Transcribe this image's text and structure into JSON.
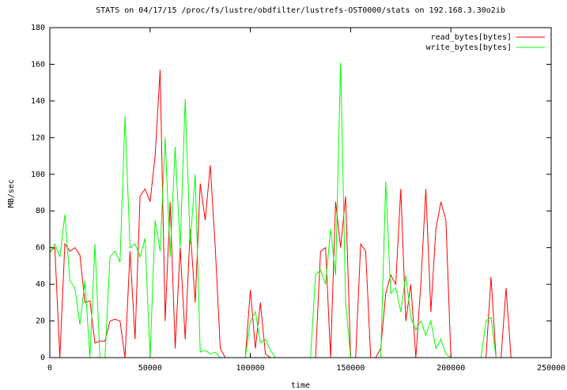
{
  "chart_data": {
    "type": "line",
    "title": "STATS on 04/17/15 /proc/fs/lustre/obdfilter/lustrefs-OST0000/stats on 192.168.3.30o2ib",
    "x_label": "time",
    "y_label": "MB/sec",
    "x": [
      0,
      2500,
      5000,
      7500,
      10000,
      12500,
      15000,
      17500,
      20000,
      22500,
      25000,
      27500,
      30000,
      32500,
      35000,
      37500,
      40000,
      42500,
      45000,
      47500,
      50000,
      52500,
      55000,
      57500,
      60000,
      62500,
      65000,
      67500,
      70000,
      72500,
      75000,
      77500,
      80000,
      82500,
      85000,
      87500,
      90000,
      92500,
      95000,
      97500,
      100000,
      102500,
      105000,
      107500,
      110000,
      112500,
      115000,
      117500,
      120000,
      122500,
      125000,
      127500,
      130000,
      132500,
      135000,
      137500,
      140000,
      142500,
      145000,
      147500,
      150000,
      152500,
      155000,
      157500,
      160000,
      162500,
      165000,
      167500,
      170000,
      172500,
      175000,
      177500,
      180000,
      182500,
      185000,
      187500,
      190000,
      192500,
      195000,
      197500,
      200000,
      202500,
      205000,
      207500,
      210000,
      212500,
      215000,
      217500,
      220000,
      222500,
      225000,
      227500,
      230000
    ],
    "series": [
      {
        "name": "read_bytes[bytes]",
        "color": "#ff0000",
        "values": [
          58,
          60,
          0,
          62,
          58,
          60,
          56,
          30,
          31,
          8,
          9,
          9,
          20,
          21,
          20,
          0,
          58,
          10,
          88,
          92,
          85,
          110,
          157,
          20,
          85,
          5,
          60,
          10,
          70,
          30,
          95,
          75,
          105,
          60,
          5,
          0,
          0,
          0,
          0,
          0,
          37,
          5,
          30,
          2,
          0,
          0,
          0,
          0,
          0,
          0,
          0,
          0,
          0,
          0,
          58,
          60,
          0,
          85,
          60,
          88,
          0,
          0,
          62,
          58,
          0,
          0,
          5,
          35,
          45,
          40,
          92,
          20,
          40,
          0,
          40,
          92,
          25,
          70,
          85,
          75,
          0,
          0,
          0,
          0,
          0,
          0,
          0,
          0,
          44,
          0,
          0,
          38,
          0
        ]
      },
      {
        "name": "write_bytes[bytes]",
        "color": "#00ff00",
        "values": [
          57,
          62,
          55,
          78,
          42,
          38,
          18,
          42,
          0,
          62,
          0,
          0,
          55,
          58,
          52,
          132,
          60,
          62,
          55,
          65,
          0,
          75,
          58,
          120,
          55,
          115,
          60,
          141,
          62,
          100,
          3,
          4,
          2,
          3,
          0,
          0,
          0,
          0,
          0,
          0,
          20,
          25,
          8,
          10,
          4,
          0,
          0,
          0,
          0,
          0,
          0,
          0,
          0,
          45,
          48,
          40,
          70,
          45,
          161,
          30,
          0,
          0,
          0,
          0,
          0,
          0,
          0,
          96,
          35,
          38,
          25,
          45,
          22,
          15,
          20,
          12,
          20,
          5,
          10,
          2,
          0,
          0,
          0,
          0,
          0,
          0,
          0,
          20,
          22,
          0,
          0,
          0,
          0
        ]
      }
    ],
    "xlim": [
      0,
      250000
    ],
    "xticks": [
      0,
      50000,
      100000,
      150000,
      200000,
      250000
    ],
    "ylim": [
      0,
      180
    ],
    "yticks": [
      0,
      20,
      40,
      60,
      80,
      100,
      120,
      140,
      160,
      180
    ],
    "legend": "top-right"
  }
}
